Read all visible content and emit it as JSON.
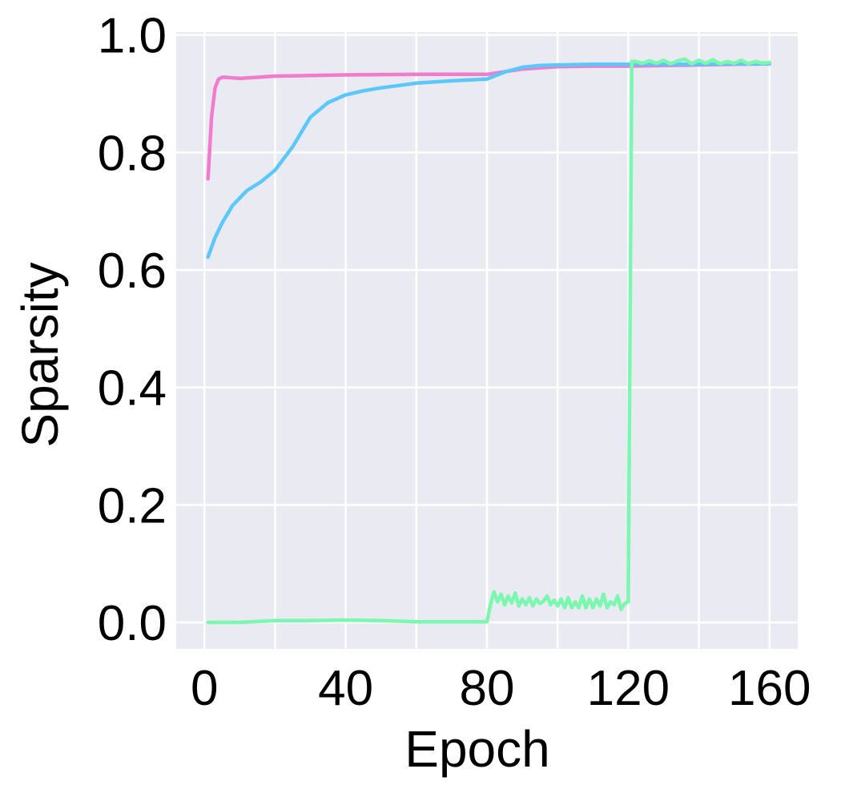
{
  "chart_data": {
    "type": "line",
    "title": "",
    "xlabel": "Epoch",
    "ylabel": "Sparsity",
    "xlim": [
      -8,
      168
    ],
    "ylim": [
      -0.045,
      1.005
    ],
    "xticks": [
      0,
      40,
      80,
      120,
      160
    ],
    "xtick_labels": [
      "0",
      "40",
      "80",
      "120",
      "160"
    ],
    "yticks": [
      0.0,
      0.2,
      0.4,
      0.6,
      0.8,
      1.0
    ],
    "ytick_labels": [
      "0.0",
      "0.2",
      "0.4",
      "0.6",
      "0.8",
      "1.0"
    ],
    "grid": true,
    "legend": false,
    "background_color": "#eaeaf2",
    "grid_color": "#ffffff",
    "series": [
      {
        "color": "#f07ccb",
        "x": [
          1,
          2,
          3,
          4,
          5,
          6,
          8,
          10,
          15,
          20,
          30,
          40,
          60,
          80,
          90,
          100,
          110,
          120,
          130,
          140,
          150,
          160
        ],
        "y": [
          0.755,
          0.86,
          0.91,
          0.925,
          0.928,
          0.928,
          0.927,
          0.926,
          0.928,
          0.93,
          0.931,
          0.932,
          0.933,
          0.933,
          0.942,
          0.946,
          0.947,
          0.947,
          0.948,
          0.949,
          0.95,
          0.951
        ]
      },
      {
        "color": "#5ac8fa",
        "x": [
          1,
          3,
          5,
          8,
          12,
          16,
          20,
          25,
          30,
          35,
          40,
          45,
          50,
          60,
          70,
          80,
          85,
          90,
          95,
          100,
          110,
          120,
          130,
          140,
          150,
          160
        ],
        "y": [
          0.622,
          0.655,
          0.68,
          0.71,
          0.735,
          0.75,
          0.77,
          0.81,
          0.86,
          0.885,
          0.898,
          0.905,
          0.91,
          0.918,
          0.922,
          0.925,
          0.937,
          0.945,
          0.948,
          0.949,
          0.95,
          0.95,
          0.95,
          0.95,
          0.951,
          0.951
        ]
      },
      {
        "color": "#7cf7b0",
        "x": [
          1,
          10,
          20,
          30,
          40,
          50,
          60,
          70,
          80,
          81,
          82,
          83,
          84,
          85,
          86,
          87,
          88,
          89,
          90,
          91,
          92,
          93,
          94,
          95,
          96,
          97,
          98,
          99,
          100,
          101,
          102,
          103,
          104,
          105,
          106,
          107,
          108,
          109,
          110,
          111,
          112,
          113,
          114,
          115,
          116,
          117,
          118,
          119,
          120,
          121,
          122,
          124,
          126,
          128,
          130,
          132,
          134,
          136,
          138,
          140,
          142,
          144,
          146,
          148,
          150,
          152,
          154,
          156,
          158,
          160
        ],
        "y": [
          0.0,
          0.0,
          0.003,
          0.003,
          0.004,
          0.003,
          0.001,
          0.001,
          0.001,
          0.03,
          0.052,
          0.035,
          0.048,
          0.03,
          0.045,
          0.033,
          0.05,
          0.028,
          0.04,
          0.03,
          0.042,
          0.028,
          0.04,
          0.032,
          0.036,
          0.045,
          0.03,
          0.038,
          0.028,
          0.04,
          0.025,
          0.042,
          0.025,
          0.035,
          0.025,
          0.045,
          0.025,
          0.04,
          0.025,
          0.04,
          0.028,
          0.048,
          0.025,
          0.035,
          0.03,
          0.045,
          0.022,
          0.032,
          0.035,
          0.955,
          0.955,
          0.952,
          0.956,
          0.952,
          0.957,
          0.951,
          0.956,
          0.959,
          0.951,
          0.957,
          0.952,
          0.958,
          0.951,
          0.955,
          0.952,
          0.957,
          0.951,
          0.955,
          0.952,
          0.953
        ]
      }
    ]
  }
}
